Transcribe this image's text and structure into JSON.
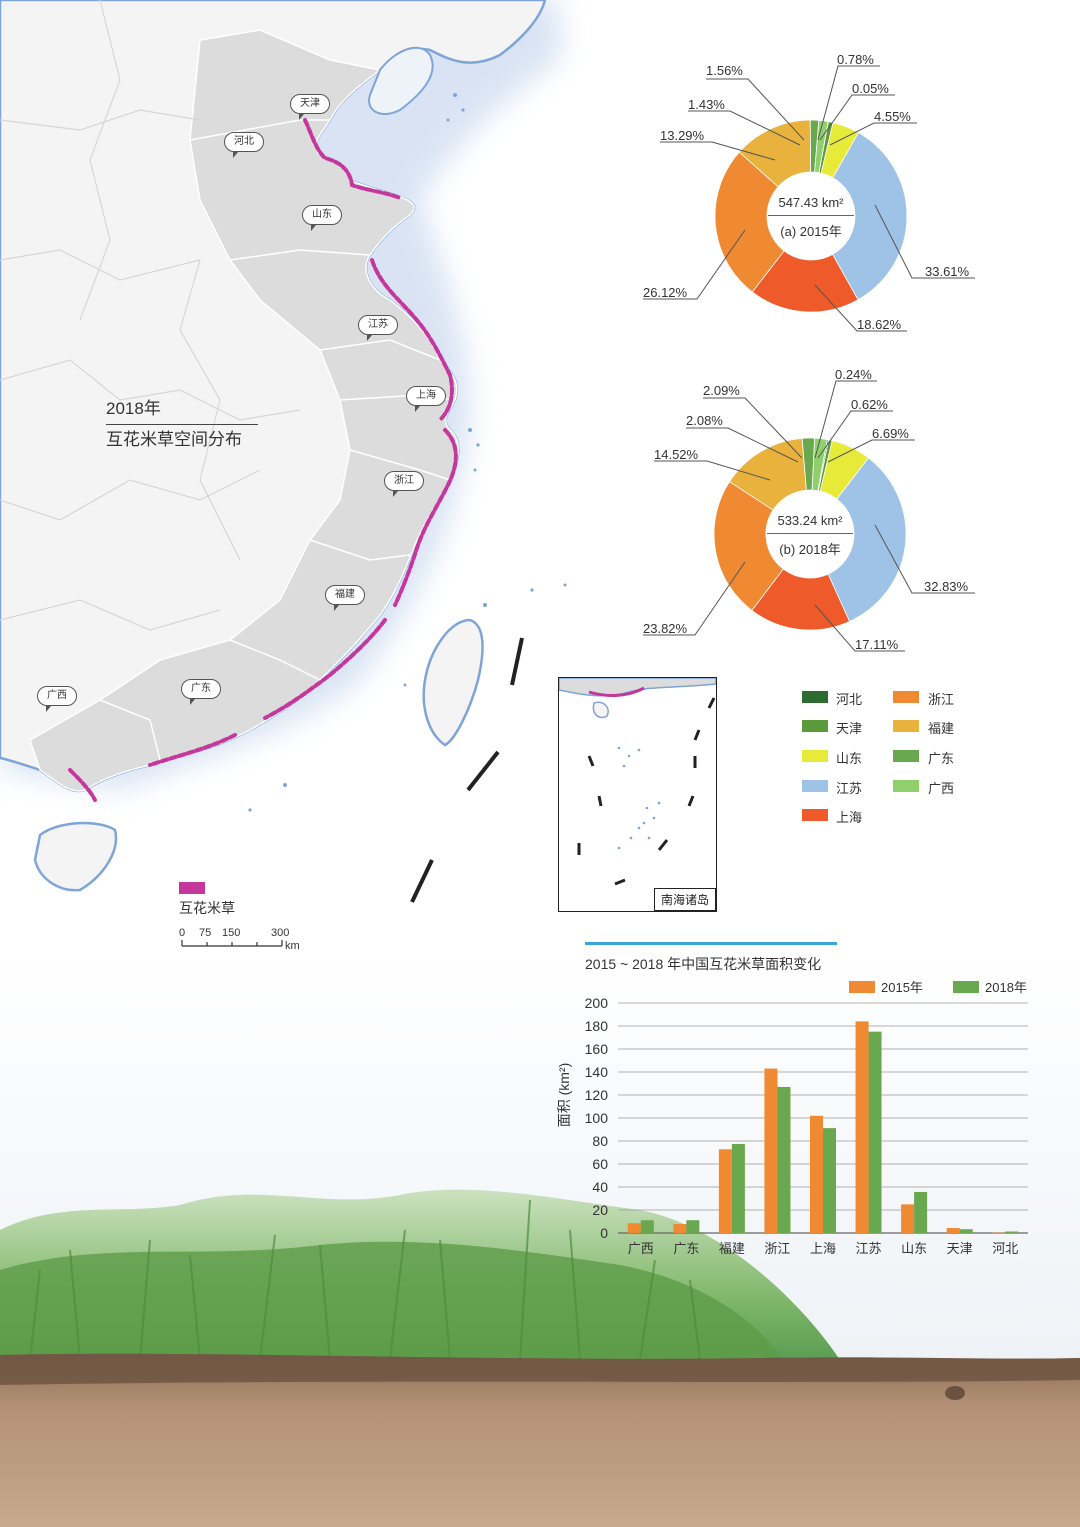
{
  "map": {
    "title_year": "2018年",
    "title_main": "互花米草空间分布",
    "legend_label": "互花米草",
    "legend_color": "#c4379c",
    "scale_ticks": [
      "0",
      "75",
      "150",
      "300"
    ],
    "scale_unit": "km",
    "inset_label": "南海诸岛",
    "provinces": [
      "天津",
      "河北",
      "山东",
      "江苏",
      "上海",
      "浙江",
      "福建",
      "广东",
      "广西"
    ]
  },
  "pie_legend": [
    {
      "name": "河北",
      "color": "#2e6b2e"
    },
    {
      "name": "浙江",
      "color": "#ef8a33"
    },
    {
      "name": "天津",
      "color": "#5a9a3a"
    },
    {
      "name": "福建",
      "color": "#e8b23c"
    },
    {
      "name": "山东",
      "color": "#e8ea3a"
    },
    {
      "name": "广东",
      "color": "#6aa84f"
    },
    {
      "name": "江苏",
      "color": "#9fc3e6"
    },
    {
      "name": "广西",
      "color": "#8fd06a"
    },
    {
      "name": "上海",
      "color": "#ee5a2a"
    }
  ],
  "pies": [
    {
      "total": "547.43 km²",
      "caption": "(a) 2015年",
      "labels": [
        "1.56%",
        "0.78%",
        "0.05%",
        "4.55%",
        "1.43%",
        "13.29%",
        "33.61%",
        "26.12%",
        "18.62%"
      ]
    },
    {
      "total": "533.24 km²",
      "caption": "(b) 2018年",
      "labels": [
        "2.09%",
        "0.24%",
        "0.62%",
        "6.69%",
        "2.08%",
        "14.52%",
        "32.83%",
        "23.82%",
        "17.11%"
      ]
    }
  ],
  "chart_data": [
    {
      "type": "pie",
      "caption": "(a) 2015年",
      "total": "547.43 km²",
      "slices": [
        {
          "name": "河北",
          "value": 0.05
        },
        {
          "name": "天津",
          "value": 0.78
        },
        {
          "name": "山东",
          "value": 4.55
        },
        {
          "name": "江苏",
          "value": 33.61
        },
        {
          "name": "上海",
          "value": 18.62
        },
        {
          "name": "浙江",
          "value": 26.12
        },
        {
          "name": "福建",
          "value": 13.29
        },
        {
          "name": "广东",
          "value": 1.43
        },
        {
          "name": "广西",
          "value": 1.56
        }
      ]
    },
    {
      "type": "pie",
      "caption": "(b) 2018年",
      "total": "533.24 km²",
      "slices": [
        {
          "name": "河北",
          "value": 0.24
        },
        {
          "name": "天津",
          "value": 0.62
        },
        {
          "name": "山东",
          "value": 6.69
        },
        {
          "name": "江苏",
          "value": 32.83
        },
        {
          "name": "上海",
          "value": 17.11
        },
        {
          "name": "浙江",
          "value": 23.82
        },
        {
          "name": "福建",
          "value": 14.52
        },
        {
          "name": "广东",
          "value": 2.08
        },
        {
          "name": "广西",
          "value": 2.09
        }
      ]
    },
    {
      "type": "bar",
      "title": "2015 ~ 2018 年中国互花米草面积变化",
      "ylabel": "面积 (km²)",
      "ylim": [
        0,
        200
      ],
      "yticks": [
        0,
        20,
        40,
        60,
        80,
        100,
        120,
        140,
        160,
        180,
        200
      ],
      "categories": [
        "广西",
        "广东",
        "福建",
        "浙江",
        "上海",
        "江苏",
        "山东",
        "天津",
        "河北"
      ],
      "series": [
        {
          "name": "2015年",
          "color": "#ef8a33",
          "values": [
            8.5,
            7.8,
            72.8,
            143.0,
            101.9,
            184.0,
            24.9,
            4.3,
            0.3
          ]
        },
        {
          "name": "2018年",
          "color": "#6aa84f",
          "values": [
            11.1,
            11.1,
            77.4,
            127.0,
            91.2,
            175.1,
            35.7,
            3.3,
            1.3
          ]
        }
      ],
      "legend_position": "top-right"
    }
  ]
}
